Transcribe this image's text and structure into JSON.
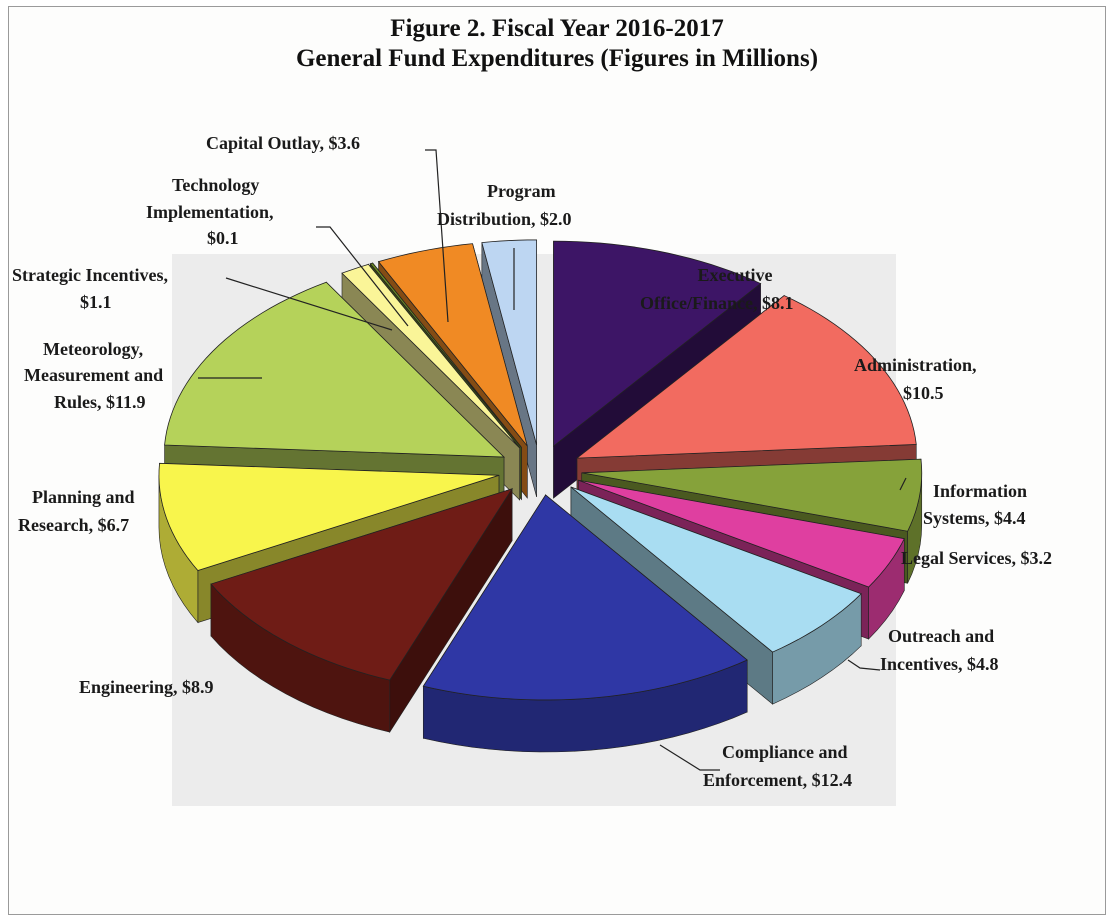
{
  "chart_data": {
    "type": "pie",
    "title": "Figure 2. Fiscal Year 2016-2017",
    "subtitle": "General Fund Expenditures (Figures in Millions)",
    "slices": [
      {
        "line1": "Executive",
        "line2": "Office/Finance, $8.1",
        "value": 8.1,
        "color": "#3d1566"
      },
      {
        "line1": "Administration,",
        "line2": "$10.5",
        "value": 10.5,
        "color": "#f26b60"
      },
      {
        "line1": "Information",
        "line2": "Systems, $4.4",
        "value": 4.4,
        "color": "#86a23a"
      },
      {
        "line1": "Legal Services, $3.2",
        "line2": "",
        "value": 3.2,
        "color": "#df3fa0"
      },
      {
        "line1": "Outreach and",
        "line2": "Incentives, $4.8",
        "value": 4.8,
        "color": "#a9ddf2"
      },
      {
        "line1": "Compliance and",
        "line2": "Enforcement, $12.4",
        "value": 12.4,
        "color": "#2f37a5"
      },
      {
        "line1": "Engineering, $8.9",
        "line2": "",
        "value": 8.9,
        "color": "#6f1c16"
      },
      {
        "line1": "Planning and",
        "line2": "Research, $6.7",
        "value": 6.7,
        "color": "#f8f54c"
      },
      {
        "line1": "Meteorology,",
        "line2": "Measurement and",
        "line3": "Rules, $11.9",
        "value": 11.9,
        "color": "#b5d25a"
      },
      {
        "line1": "Strategic Incentives,",
        "line2": "$1.1",
        "value": 1.1,
        "color": "#faf598"
      },
      {
        "line1": "Technology",
        "line2": "Implementation,",
        "line3": "$0.1",
        "value": 0.1,
        "color": "#6b8a22"
      },
      {
        "line1": "Capital Outlay, $3.6",
        "line2": "",
        "value": 3.6,
        "color": "#f08a24"
      },
      {
        "line1": "Program",
        "line2": "Distribution, $2.0",
        "value": 2.0,
        "color": "#bdd6f2"
      }
    ]
  }
}
